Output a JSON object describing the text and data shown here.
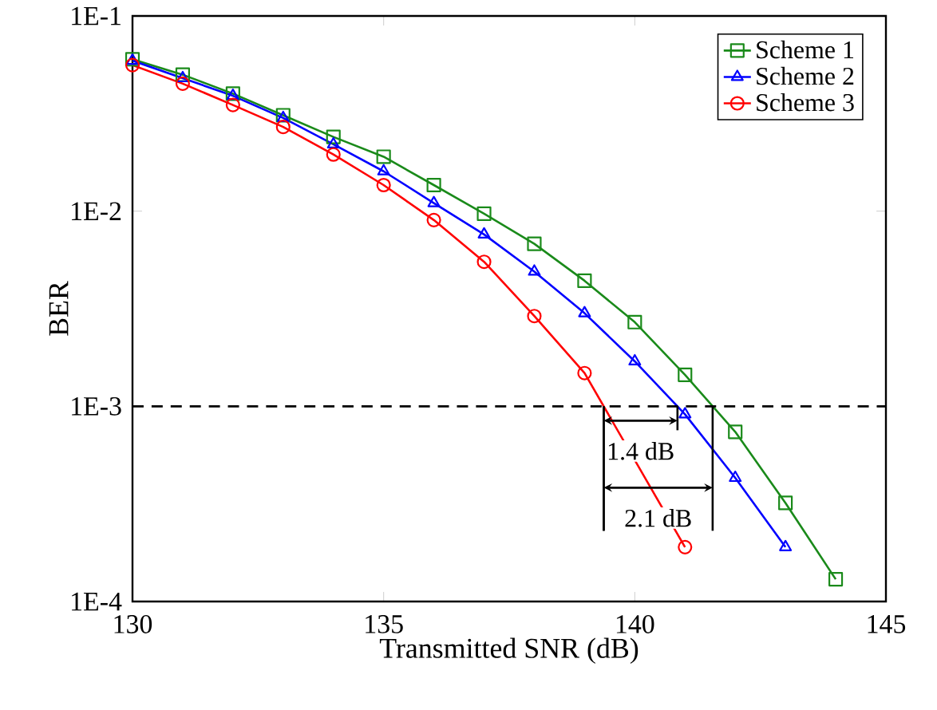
{
  "chart_data": {
    "type": "line",
    "xlabel": "Transmitted SNR (dB)",
    "ylabel": "BER",
    "log": "y",
    "x": [
      130,
      131,
      132,
      133,
      134,
      135,
      136,
      137,
      138,
      139,
      140,
      141,
      142,
      143,
      144
    ],
    "series": [
      {
        "name": "Scheme 1",
        "color": "#1a8a1a",
        "marker": "square",
        "values": [
          0.06,
          0.05,
          0.04,
          0.031,
          0.024,
          0.019,
          0.0136,
          0.0097,
          0.0068,
          0.0044,
          0.0027,
          0.00145,
          0.00074,
          0.00032,
          0.00013
        ]
      },
      {
        "name": "Scheme 2",
        "color": "#0000ff",
        "marker": "triangle",
        "values": [
          0.059,
          0.048,
          0.039,
          0.03,
          0.022,
          0.016,
          0.011,
          0.0076,
          0.0049,
          0.003,
          0.0017,
          0.00091,
          0.00043,
          0.00019,
          null
        ]
      },
      {
        "name": "Scheme 3",
        "color": "#ff0000",
        "marker": "circle",
        "values": [
          0.056,
          0.045,
          0.035,
          0.027,
          0.0195,
          0.0136,
          0.009,
          0.0055,
          0.0029,
          0.00148,
          null,
          0.00019,
          null,
          null,
          null
        ]
      }
    ],
    "xlim": [
      130,
      145
    ],
    "xticks": [
      130,
      135,
      140,
      145
    ],
    "ylim": [
      0.0001,
      0.1
    ],
    "yticks": [
      {
        "value": 0.0001,
        "label": "1E-4"
      },
      {
        "value": 0.001,
        "label": "1E-3"
      },
      {
        "value": 0.01,
        "label": "1E-2"
      },
      {
        "value": 0.1,
        "label": "1E-1"
      }
    ],
    "ref_lines": [
      {
        "axis": "y",
        "value": 0.001,
        "color": "#000000",
        "line_style": "dashed"
      }
    ],
    "annotations": [
      {
        "text": "1.4 dB",
        "x": 140.85,
        "y": 0.001
      },
      {
        "text": "2.1 dB",
        "x": 141.55,
        "y": 0.001
      }
    ],
    "grid": false,
    "legend": "top right"
  }
}
